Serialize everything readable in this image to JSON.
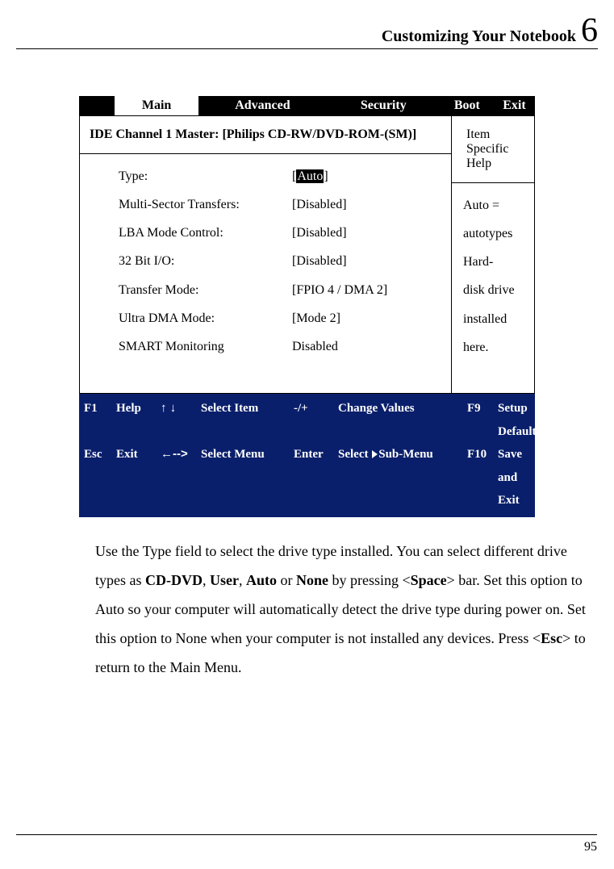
{
  "header": {
    "title": "Customizing Your Notebook",
    "chapter_number": "6"
  },
  "bios": {
    "tabs": [
      {
        "label": "",
        "inverted": true,
        "width": 50
      },
      {
        "label": "Main",
        "inverted": false,
        "width": 118
      },
      {
        "label": "Advanced",
        "inverted": true,
        "width": 180
      },
      {
        "label": "Security",
        "inverted": true,
        "width": 160
      },
      {
        "label": "Boot",
        "inverted": true,
        "width": 75
      },
      {
        "label": "Exit",
        "inverted": true,
        "width": 58
      }
    ],
    "section_title": "IDE Channel 1 Master: [Philips CD-RW/DVD-ROM-(SM)]",
    "help_title": "Item Specific Help",
    "settings": [
      {
        "label": "Type:",
        "value_prefix": "[",
        "value_highlight": "Auto",
        "value_suffix": "]"
      },
      {
        "label": "",
        "value": ""
      },
      {
        "label": "Multi-Sector Transfers:",
        "value": "[Disabled]"
      },
      {
        "label": "LBA Mode Control:",
        "value": "[Disabled]"
      },
      {
        "label": "32 Bit I/O:",
        "value": "[Disabled]"
      },
      {
        "label": "Transfer Mode:",
        "value": "[FPIO 4 / DMA 2]"
      },
      {
        "label": "Ultra DMA Mode:",
        "value": "[Mode 2]"
      },
      {
        "label": "SMART Monitoring",
        "value": "Disabled"
      }
    ],
    "help_text_line1": "Auto = autotypes Hard-",
    "help_text_line2": "disk drive installed here.",
    "footer": {
      "row1": {
        "c1": "F1",
        "c2": "Help",
        "c3": "↑ ↓",
        "c4": "Select Item",
        "c5": "-/+",
        "c6": "Change Values",
        "c7": "F9",
        "c8": "Setup Defaults"
      },
      "row2": {
        "c1": "Esc",
        "c2": "Exit",
        "c3": "←-->",
        "c4": "Select Menu",
        "c5": "Enter",
        "c6_a": "Select ",
        "c6_b": "Sub-Menu",
        "c7": "F10",
        "c8": "Save and Exit"
      }
    },
    "footer_bg": "#0a1f6b",
    "footer_fg": "#ffffff"
  },
  "body_paragraph": {
    "t1": "Use the Type field to select the drive type installed. You can select different drive types as ",
    "b1": "CD-DVD",
    "t2": ", ",
    "b2": "User",
    "t3": ", ",
    "b3": "Auto",
    "t4": " or ",
    "b4": "None",
    "t5": " by pressing <",
    "b5": "Space",
    "t6": "> bar. Set this option to Auto so your computer will automatically detect the drive type during power on. Set this option to None when your computer is not installed any devices. Press <",
    "b6": "Esc",
    "t7": "> to return to the Main Menu."
  },
  "page_number": "95"
}
